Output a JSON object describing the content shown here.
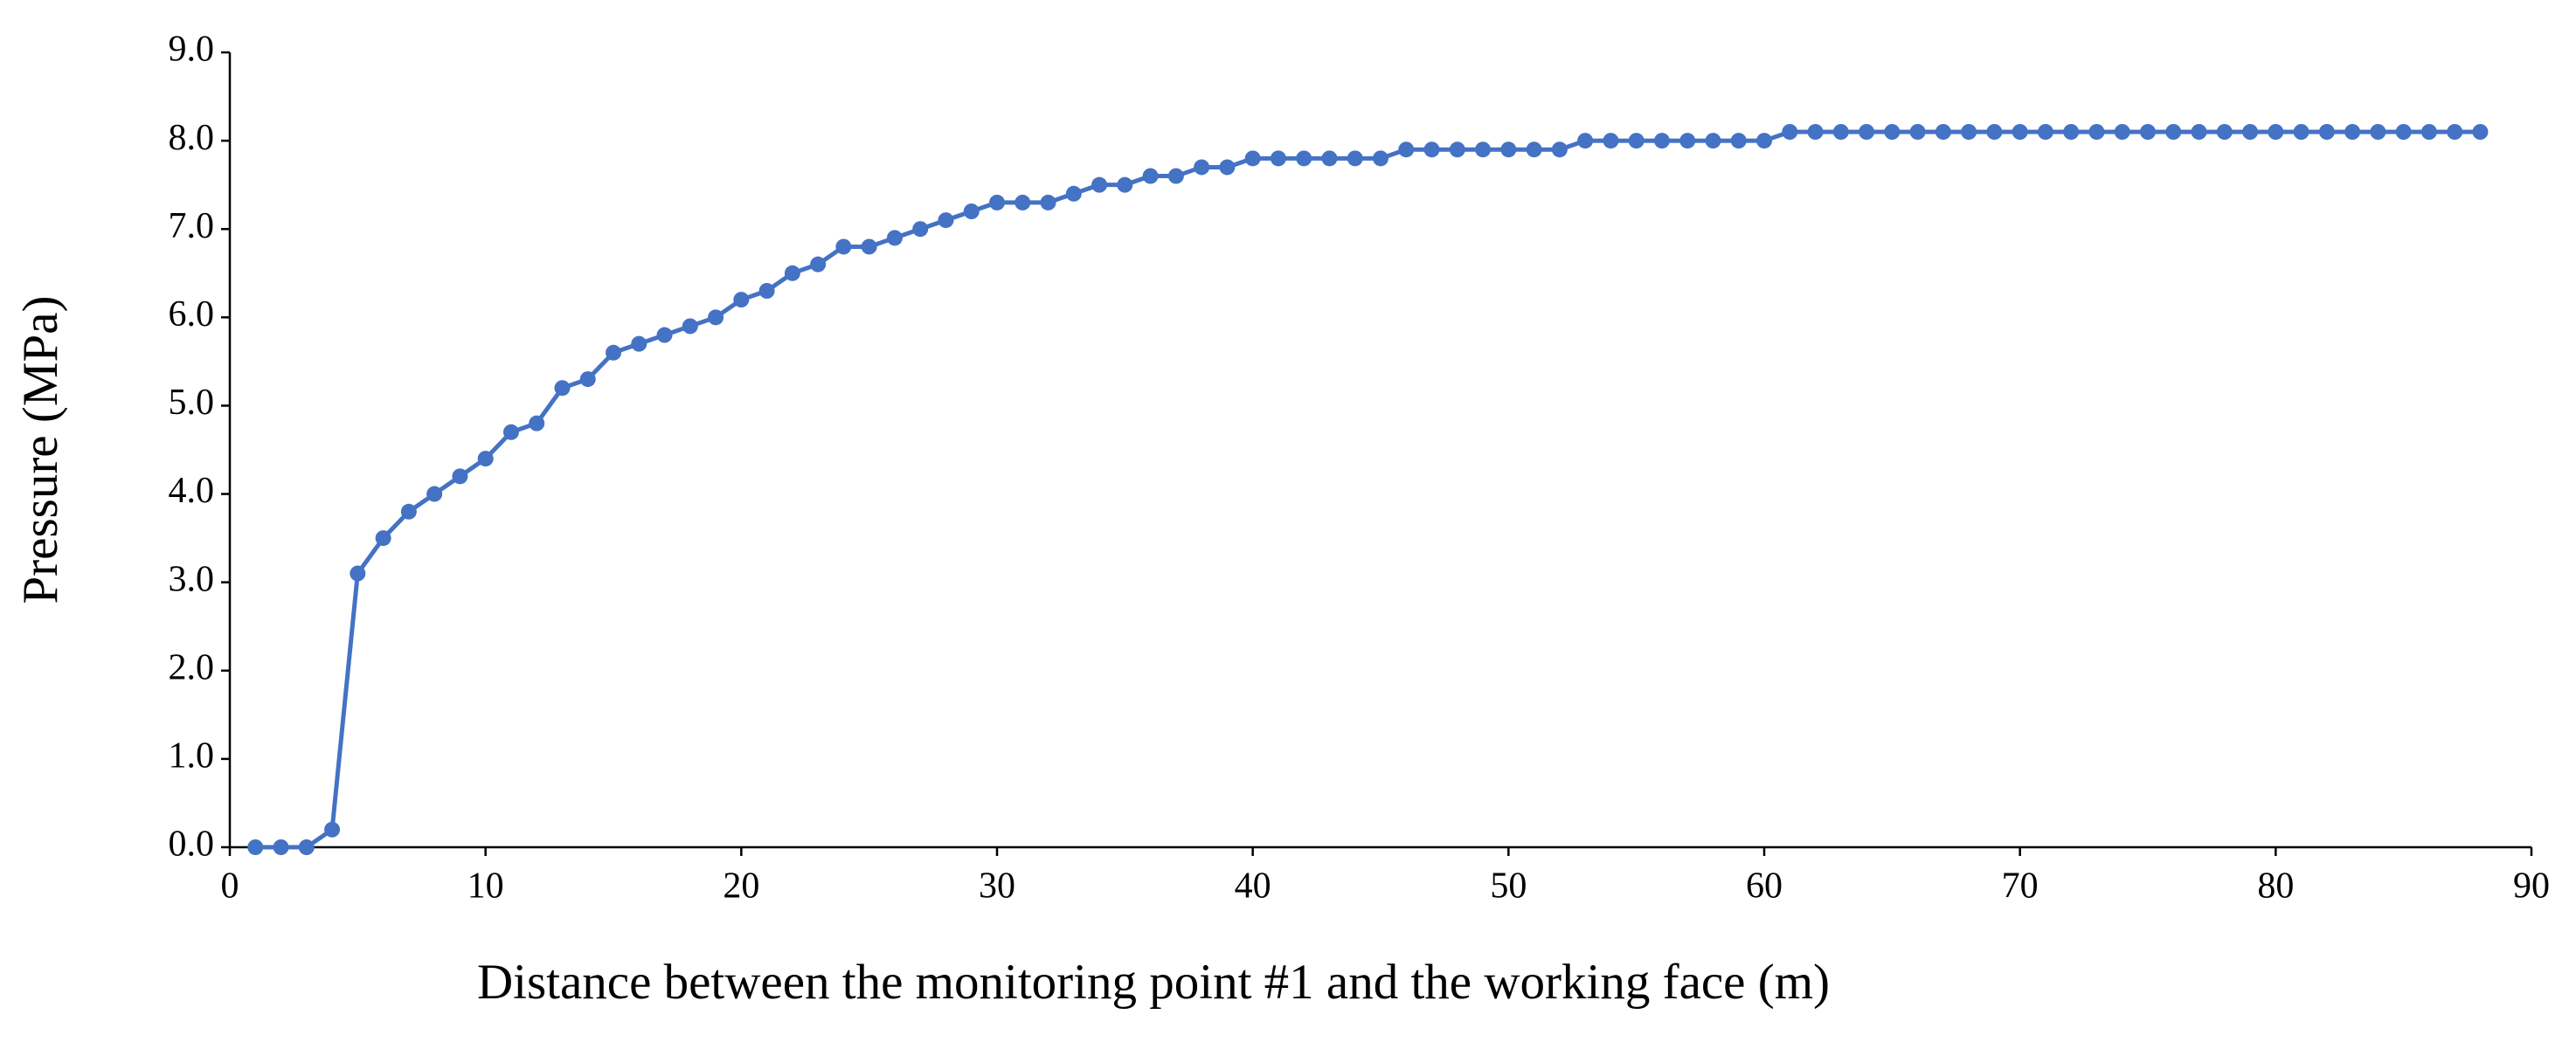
{
  "chart_data": {
    "type": "line",
    "xlabel": "Distance between the monitoring point #1 and the working face (m)",
    "ylabel": "Pressure (MPa)",
    "x": [
      1,
      2,
      3,
      4,
      5,
      6,
      7,
      8,
      9,
      10,
      11,
      12,
      13,
      14,
      15,
      16,
      17,
      18,
      19,
      20,
      21,
      22,
      23,
      24,
      25,
      26,
      27,
      28,
      29,
      30,
      31,
      32,
      33,
      34,
      35,
      36,
      37,
      38,
      39,
      40,
      41,
      42,
      43,
      44,
      45,
      46,
      47,
      48,
      49,
      50,
      51,
      52,
      53,
      54,
      55,
      56,
      57,
      58,
      59,
      60,
      61,
      62,
      63,
      64,
      65,
      66,
      67,
      68,
      69,
      70,
      71,
      72,
      73,
      74,
      75,
      76,
      77,
      78,
      79,
      80,
      81,
      82,
      83,
      84,
      85,
      86,
      87,
      88
    ],
    "values": [
      0,
      0,
      0,
      0.2,
      3.1,
      3.5,
      3.8,
      4.0,
      4.2,
      4.4,
      4.7,
      4.8,
      5.2,
      5.3,
      5.6,
      5.7,
      5.8,
      5.9,
      6.0,
      6.2,
      6.3,
      6.5,
      6.6,
      6.8,
      6.8,
      6.9,
      7.0,
      7.1,
      7.2,
      7.3,
      7.3,
      7.3,
      7.4,
      7.5,
      7.5,
      7.6,
      7.6,
      7.7,
      7.7,
      7.8,
      7.8,
      7.8,
      7.8,
      7.8,
      7.8,
      7.9,
      7.9,
      7.9,
      7.9,
      7.9,
      7.9,
      7.9,
      8.0,
      8.0,
      8.0,
      8.0,
      8.0,
      8.0,
      8.0,
      8.0,
      8.1,
      8.1,
      8.1,
      8.1,
      8.1,
      8.1,
      8.1,
      8.1,
      8.1,
      8.1,
      8.1,
      8.1,
      8.1,
      8.1,
      8.1,
      8.1,
      8.1,
      8.1,
      8.1,
      8.1,
      8.1,
      8.1,
      8.1,
      8.1,
      8.1,
      8.1,
      8.1,
      8.1
    ],
    "color": "#4472c4",
    "xlim": [
      0,
      90
    ],
    "xticks": [
      0,
      10,
      20,
      30,
      40,
      50,
      60,
      70,
      80,
      90
    ],
    "ylim": [
      0,
      9
    ],
    "yticks": [
      {
        "value": 0,
        "label": "0.0"
      },
      {
        "value": 1,
        "label": "1.0"
      },
      {
        "value": 2,
        "label": "2.0"
      },
      {
        "value": 3,
        "label": "3.0"
      },
      {
        "value": 4,
        "label": "4.0"
      },
      {
        "value": 5,
        "label": "5.0"
      },
      {
        "value": 6,
        "label": "6.0"
      },
      {
        "value": 7,
        "label": "7.0"
      },
      {
        "value": 8,
        "label": "8.0"
      },
      {
        "value": 9,
        "label": "9.0"
      }
    ],
    "grid": false
  }
}
